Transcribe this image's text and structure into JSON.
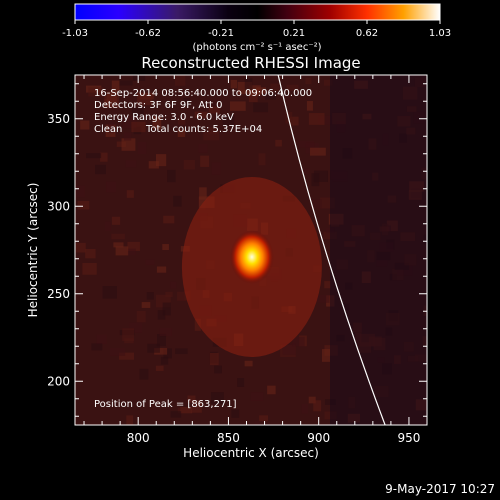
{
  "colorbar": {
    "ticks": [
      "-1.03",
      "-0.62",
      "-0.21",
      "0.21",
      "0.62",
      "1.03"
    ],
    "unit": "(photons cm⁻² s⁻¹ asec⁻²)",
    "gradient": [
      "#0000ff",
      "#3000ff",
      "#3a1a5a",
      "#000000",
      "#4a0010",
      "#a00000",
      "#ff3000",
      "#ff9000",
      "#ffff80",
      "#ffffff"
    ]
  },
  "title": "Reconstructed RHESSI Image",
  "info": {
    "time_range": "16-Sep-2014 08:56:40.000 to 09:06:40.000",
    "detectors": "Detectors: 3F 6F 9F, Att 0",
    "energy": "Energy Range: 3.0 - 6.0 keV",
    "algorithm": "Clean",
    "counts": "Total counts: 5.37E+04",
    "peak": "Position of Peak = [863,271]"
  },
  "axes": {
    "xlabel": "Heliocentric X (arcsec)",
    "ylabel": "Heliocentric Y (arcsec)",
    "xticks": [
      "800",
      "850",
      "900",
      "950"
    ],
    "yticks": [
      "200",
      "250",
      "300",
      "350"
    ]
  },
  "map": {
    "peak_x": 863,
    "peak_y": 271,
    "x_range": [
      765,
      960
    ],
    "y_range": [
      175,
      375
    ]
  },
  "timestamp": "9-May-2017 10:27",
  "colors": {
    "background": "#000000",
    "limb": "#ffffff"
  }
}
